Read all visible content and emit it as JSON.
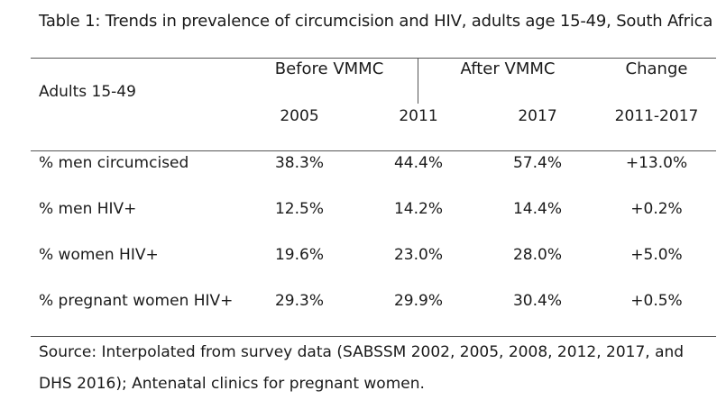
{
  "title": "Table 1: Trends in prevalence of circumcision and HIV, adults age 15-49, South Africa",
  "header": {
    "row_label": "Adults 15-49",
    "groups": [
      "Before VMMC",
      "After VMMC",
      "Change"
    ],
    "years": [
      "2005",
      "2011",
      "2017",
      "2011-2017"
    ]
  },
  "rows": [
    {
      "label": "% men circumcised",
      "values": [
        "38.3%",
        "44.4%",
        "57.4%",
        "+13.0%"
      ]
    },
    {
      "label": "% men HIV+",
      "values": [
        "12.5%",
        "14.2%",
        "14.4%",
        "+0.2%"
      ]
    },
    {
      "label": "% women HIV+",
      "values": [
        "19.6%",
        "23.0%",
        "28.0%",
        "+5.0%"
      ]
    },
    {
      "label": "% pregnant women HIV+",
      "values": [
        "29.3%",
        "29.9%",
        "30.4%",
        "+0.5%"
      ]
    }
  ],
  "source": "Source: Interpolated from survey data (SABSSM 2002, 2005, 2008, 2012, 2017, and DHS 2016); Antenatal clinics for pregnant women."
}
